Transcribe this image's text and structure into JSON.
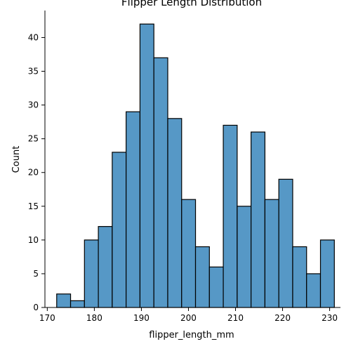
{
  "chart_data": {
    "type": "bar",
    "title": "Flipper Length Distribution",
    "xlabel": "flipper_length_mm",
    "ylabel": "Count",
    "xlim": [
      169.5,
      232.3
    ],
    "ylim": [
      0,
      44
    ],
    "xticks": [
      170,
      180,
      190,
      200,
      210,
      220,
      230
    ],
    "yticks": [
      0,
      5,
      10,
      15,
      20,
      25,
      30,
      35,
      40
    ],
    "bin_start": 172,
    "bin_width": 2.95,
    "values": [
      2,
      1,
      10,
      12,
      23,
      29,
      42,
      37,
      28,
      16,
      9,
      6,
      27,
      15,
      26,
      16,
      19,
      9,
      5,
      10
    ],
    "bar_color": "#5698c6",
    "edge_color": "#000000",
    "grid": false
  }
}
